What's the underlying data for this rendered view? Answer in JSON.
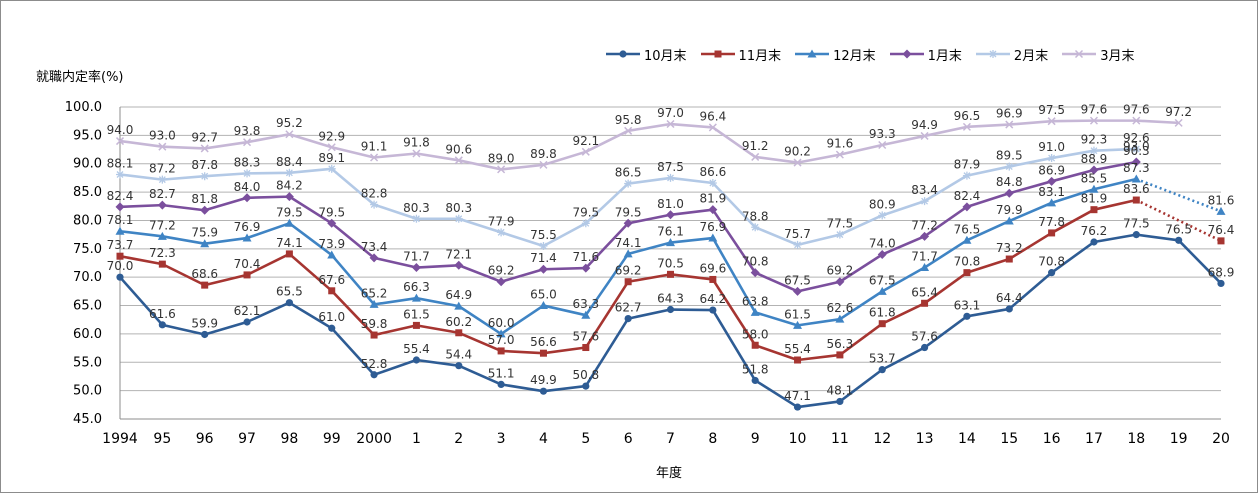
{
  "chart_data": {
    "type": "line",
    "title": "",
    "ylabel": "就職内定率(%)",
    "xlabel": "年度",
    "ylim": [
      45,
      100
    ],
    "yticks": [
      "45.0",
      "50.0",
      "55.0",
      "60.0",
      "65.0",
      "70.0",
      "75.0",
      "80.0",
      "85.0",
      "90.0",
      "95.0",
      "100.0"
    ],
    "categories": [
      "1994",
      "95",
      "96",
      "97",
      "98",
      "99",
      "2000",
      "1",
      "2",
      "3",
      "4",
      "5",
      "6",
      "7",
      "8",
      "9",
      "10",
      "11",
      "12",
      "13",
      "14",
      "15",
      "16",
      "17",
      "18",
      "19",
      "20"
    ],
    "grid": true,
    "legend_position": "top-right",
    "series": [
      {
        "name": "10月末",
        "color": "#2e5c94",
        "marker": "circle",
        "values": [
          70.0,
          61.6,
          59.9,
          62.1,
          65.5,
          61.0,
          52.8,
          55.4,
          54.4,
          51.1,
          49.9,
          50.8,
          62.7,
          64.3,
          64.2,
          51.8,
          47.1,
          48.1,
          53.7,
          57.6,
          63.1,
          64.4,
          70.8,
          76.2,
          77.5,
          76.5,
          68.9
        ],
        "labels": [
          "70.0",
          "61.6",
          "59.9",
          "62.1",
          "65.5",
          "61.0",
          "52.8",
          "55.4",
          "54.4",
          "51.1",
          "49.9",
          "50.8",
          "62.7",
          "64.3",
          "64.2",
          "51.8",
          "47.1",
          "48.1",
          "53.7",
          "57.6",
          "63.1",
          "64.4",
          "70.8",
          "76.2",
          "77.5",
          "76.5",
          "68.9"
        ],
        "dotted_from": 99
      },
      {
        "name": "11月末",
        "color": "#a63531",
        "marker": "square",
        "values": [
          73.7,
          72.3,
          68.6,
          70.4,
          74.1,
          67.6,
          59.8,
          61.5,
          60.2,
          57.0,
          56.6,
          57.6,
          69.2,
          70.5,
          69.6,
          58.0,
          55.4,
          56.3,
          61.8,
          65.4,
          70.8,
          73.2,
          77.8,
          81.9,
          83.6,
          null,
          76.4
        ],
        "labels": [
          "73.7",
          "72.3",
          "68.6",
          "70.4",
          "74.1",
          "67.6",
          "59.8",
          "61.5",
          "60.2",
          "57.0",
          "56.6",
          "57.6",
          "69.2",
          "70.5",
          "69.6",
          "58.0",
          "55.4",
          "56.3",
          "61.8",
          "65.4",
          "70.8",
          "73.2",
          "77.8",
          "81.9",
          "83.6",
          "",
          "76.4"
        ],
        "dotted_from": 24
      },
      {
        "name": "12月末",
        "color": "#3f84c4",
        "marker": "triangle",
        "values": [
          78.1,
          77.2,
          75.9,
          76.9,
          79.5,
          73.9,
          65.2,
          66.3,
          64.9,
          60.0,
          65.0,
          63.3,
          74.1,
          76.1,
          76.9,
          63.8,
          61.5,
          62.6,
          67.5,
          71.7,
          76.5,
          79.9,
          83.1,
          85.5,
          87.3,
          null,
          81.6
        ],
        "labels": [
          "78.1",
          "77.2",
          "75.9",
          "76.9",
          "79.5",
          "73.9",
          "65.2",
          "66.3",
          "64.9",
          "60.0",
          "65.0",
          "63.3",
          "74.1",
          "76.1",
          "76.9",
          "63.8",
          "61.5",
          "62.6",
          "67.5",
          "71.7",
          "76.5",
          "79.9",
          "83.1",
          "85.5",
          "87.3",
          "",
          "81.6"
        ],
        "dotted_from": 24
      },
      {
        "name": "1月末",
        "color": "#7b4f9d",
        "marker": "diamond",
        "values": [
          82.4,
          82.7,
          81.8,
          84.0,
          84.2,
          79.5,
          73.4,
          71.7,
          72.1,
          69.2,
          71.4,
          71.6,
          79.5,
          81.0,
          81.9,
          70.8,
          67.5,
          69.2,
          74.0,
          77.2,
          82.4,
          84.8,
          86.9,
          88.9,
          90.3,
          null,
          null
        ],
        "labels": [
          "82.4",
          "82.7",
          "81.8",
          "84.0",
          "84.2",
          "79.5",
          "73.4",
          "71.7",
          "72.1",
          "69.2",
          "71.4",
          "71.6",
          "79.5",
          "81.0",
          "81.9",
          "70.8",
          "67.5",
          "69.2",
          "74.0",
          "77.2",
          "82.4",
          "84.8",
          "86.9",
          "88.9",
          "90.3",
          "",
          ""
        ],
        "dotted_from": 99
      },
      {
        "name": "2月末",
        "color": "#b3c9e6",
        "marker": "star",
        "values": [
          88.1,
          87.2,
          87.8,
          88.3,
          88.4,
          89.1,
          82.8,
          80.3,
          80.3,
          77.9,
          75.5,
          79.5,
          86.5,
          87.5,
          86.6,
          78.8,
          75.7,
          77.5,
          80.9,
          83.4,
          87.9,
          89.5,
          91.0,
          92.3,
          92.6,
          null,
          null
        ],
        "labels": [
          "88.1",
          "87.2",
          "87.8",
          "88.3",
          "88.4",
          "89.1",
          "82.8",
          "80.3",
          "80.3",
          "77.9",
          "75.5",
          "79.5",
          "86.5",
          "87.5",
          "86.6",
          "78.8",
          "75.7",
          "77.5",
          "80.9",
          "83.4",
          "87.9",
          "89.5",
          "91.0",
          "92.3",
          "92.6",
          "",
          ""
        ],
        "dotted_from": 99
      },
      {
        "name": "3月末",
        "color": "#c6b7d6",
        "marker": "x",
        "values": [
          94.0,
          93.0,
          92.7,
          93.8,
          95.2,
          92.9,
          91.1,
          91.8,
          90.6,
          89.0,
          89.8,
          92.1,
          95.8,
          97.0,
          96.4,
          91.2,
          90.2,
          91.6,
          93.3,
          94.9,
          96.5,
          96.9,
          97.5,
          97.6,
          97.6,
          97.2,
          null
        ],
        "labels": [
          "94.0",
          "93.0",
          "92.7",
          "93.8",
          "95.2",
          "92.9",
          "91.1",
          "91.8",
          "90.6",
          "89.0",
          "89.8",
          "92.1",
          "95.8",
          "97.0",
          "96.4",
          "91.2",
          "90.2",
          "91.6",
          "93.3",
          "94.9",
          "96.5",
          "96.9",
          "97.5",
          "97.6",
          "97.6",
          "97.2",
          ""
        ],
        "dotted_from": 99
      }
    ],
    "annotations": [
      "93.0"
    ]
  }
}
